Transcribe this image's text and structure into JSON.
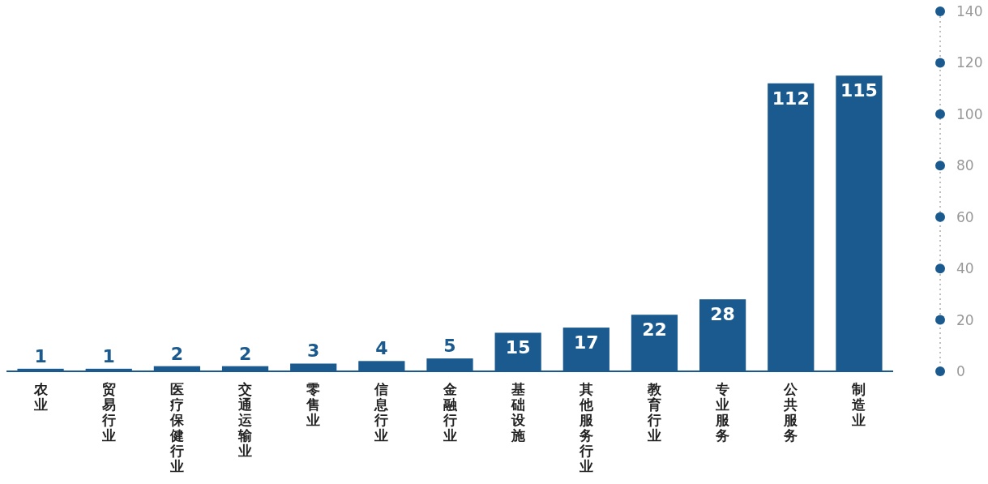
{
  "chart_data": {
    "type": "bar",
    "categories": [
      "农业",
      "贸易行业",
      "医疗保健行业",
      "交通运输业",
      "零售业",
      "信息行业",
      "金融行业",
      "基础设施",
      "其他服务行业",
      "教育行业",
      "专业服务",
      "公共服务",
      "制造业"
    ],
    "values": [
      1,
      1,
      2,
      2,
      3,
      4,
      5,
      15,
      17,
      22,
      28,
      112,
      115
    ],
    "color": "#1b5a8f",
    "ylim": [
      0,
      140
    ],
    "yticks": [
      0,
      20,
      40,
      60,
      80,
      100,
      120,
      140
    ],
    "data_labels": true,
    "grid": false
  }
}
